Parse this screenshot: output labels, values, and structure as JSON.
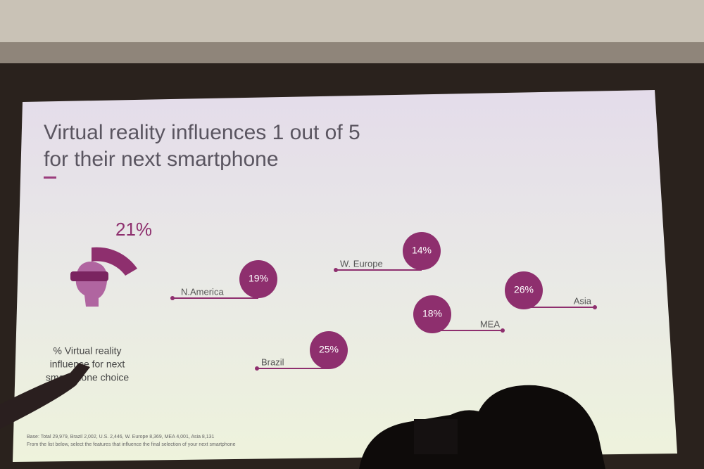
{
  "slide": {
    "title_lines": [
      "Virtual reality influences 1 out of 5",
      "for their next smartphone"
    ],
    "headline_stat": "21%",
    "caption_lines": [
      "% Virtual reality",
      "influence for next",
      "smartphone choice"
    ],
    "regions": [
      {
        "name": "N.America",
        "value": "19%"
      },
      {
        "name": "W. Europe",
        "value": "14%"
      },
      {
        "name": "Asia",
        "value": "26%"
      },
      {
        "name": "MEA",
        "value": "18%"
      },
      {
        "name": "Brazil",
        "value": "25%"
      }
    ],
    "footnotes": [
      "Base: Total 29,979, Brazil 2,002, U.S. 2,446, W. Europe 8,369, MEA 4,001, Asia 8,131",
      "From the list below, select the features that influence the final selection of your next smartphone"
    ]
  }
}
